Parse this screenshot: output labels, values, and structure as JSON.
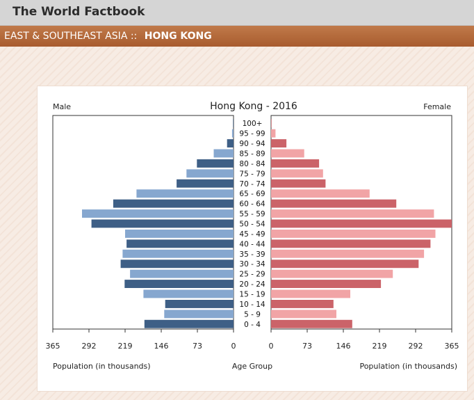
{
  "header": {
    "title": "The World Factbook"
  },
  "region": {
    "region_label": "EAST & SOUTHEAST ASIA ::",
    "country": "HONG KONG"
  },
  "colors": {
    "male_dark": "#3e5f86",
    "male_light": "#86a7cf",
    "female_dark": "#cb6369",
    "female_light": "#f1a4a6"
  },
  "chart_data": {
    "type": "bar",
    "title": "Hong Kong - 2016",
    "left_label": "Male",
    "right_label": "Female",
    "xlabel_left": "Population (in thousands)",
    "xlabel_center": "Age Group",
    "xlabel_right": "Population (in thousands)",
    "xlim": [
      0,
      365
    ],
    "x_ticks": [
      0,
      73,
      146,
      219,
      292,
      365
    ],
    "categories": [
      "0 - 4",
      "5 - 9",
      "10 - 14",
      "15 - 19",
      "20 - 24",
      "25 - 29",
      "30 - 34",
      "35 - 39",
      "40 - 44",
      "45 - 49",
      "50 - 54",
      "55 - 59",
      "60 - 64",
      "65 - 69",
      "70 - 74",
      "75 - 79",
      "80 - 84",
      "85 - 89",
      "90 - 94",
      "95 - 99",
      "100+"
    ],
    "series": [
      {
        "name": "Male",
        "values": [
          180,
          140,
          138,
          182,
          220,
          209,
          228,
          224,
          216,
          219,
          287,
          306,
          243,
          196,
          115,
          95,
          74,
          40,
          13,
          3,
          1
        ]
      },
      {
        "name": "Female",
        "values": [
          164,
          132,
          126,
          160,
          222,
          246,
          298,
          309,
          322,
          332,
          365,
          329,
          253,
          199,
          110,
          105,
          97,
          67,
          31,
          9,
          1
        ]
      }
    ]
  }
}
